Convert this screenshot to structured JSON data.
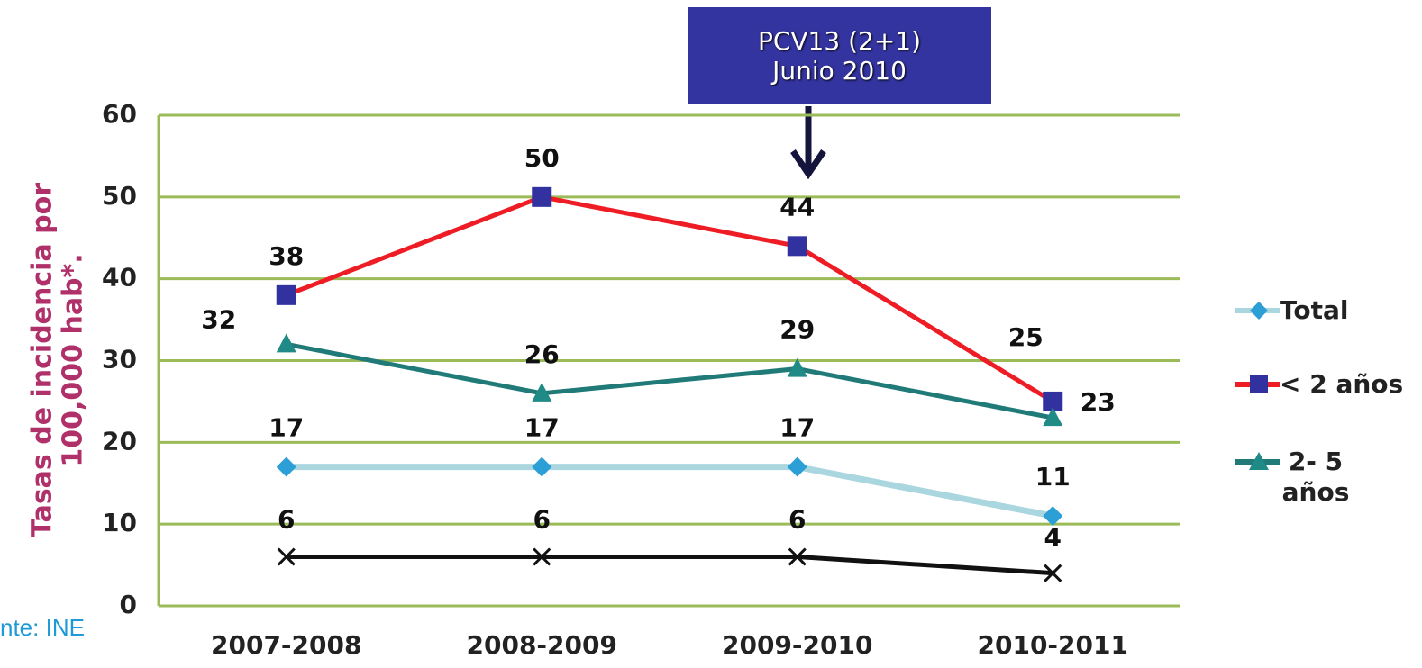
{
  "chart_data": {
    "type": "line",
    "annotation": [
      "PCV13 (2+1)",
      "Junio 2010"
    ],
    "y_label": [
      "Tasas de incidencia por",
      "100,000 hab*."
    ],
    "source": "nte: INE",
    "categories": [
      "2007-2008",
      "2008-2009",
      "2009-2010",
      "2010-2011"
    ],
    "series": [
      {
        "name": "Total",
        "color": "#a9d6df",
        "marker_color": "#2b9fd6",
        "marker": "diamond",
        "values": [
          17,
          17,
          17,
          11
        ]
      },
      {
        "name": "< 2 años",
        "color": "#ee1c24",
        "marker_color": "#3131a0",
        "marker": "square",
        "values": [
          38,
          50,
          44,
          25
        ]
      },
      {
        "name": "2- 5 años",
        "color": "#1f7a78",
        "marker_color": "#1f8a86",
        "marker": "triangle",
        "values": [
          32,
          26,
          29,
          23
        ]
      },
      {
        "color": "#111111",
        "marker_color": "#111111",
        "marker": "x",
        "values": [
          6,
          6,
          6,
          4
        ]
      }
    ],
    "ylim": [
      0,
      60
    ],
    "yticks": [
      0,
      10,
      20,
      30,
      40,
      50,
      60
    ],
    "grid": true,
    "legend": "right"
  }
}
